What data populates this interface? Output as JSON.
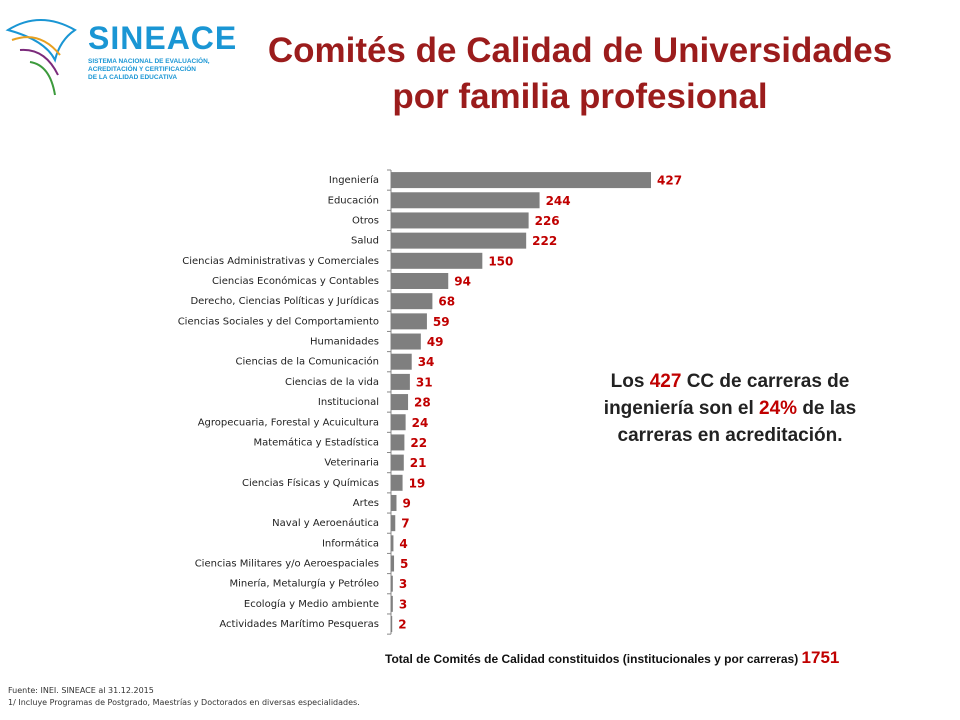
{
  "logo": {
    "name": "SINEACE",
    "subtitle_lines": [
      "SISTEMA NACIONAL DE EVALUACIÓN,",
      "ACREDITACIÓN Y CERTIFICACIÓN",
      "DE LA CALIDAD EDUCATIVA"
    ]
  },
  "chart_data": {
    "type": "bar",
    "orientation": "horizontal",
    "title_lines": [
      "Comités de Calidad de Universidades",
      "por familia profesional"
    ],
    "categories": [
      "Ingeniería",
      "Educación",
      "Otros",
      "Salud",
      "Ciencias Administrativas y Comerciales",
      "Ciencias Económicas y Contables",
      "Derecho, Ciencias Políticas y Jurídicas",
      "Ciencias Sociales y del Comportamiento",
      "Humanidades",
      "Ciencias de la Comunicación",
      "Ciencias de la vida",
      "Institucional",
      "Agropecuaria, Forestal y Acuicultura",
      "Matemática y Estadística",
      "Veterinaria",
      "Ciencias Físicas y Químicas",
      "Artes",
      "Naval y Aeroenáutica",
      "Informática",
      "Ciencias Militares y/o Aeroespaciales",
      "Minería, Metalurgía y Petróleo",
      "Ecología y Medio ambiente",
      "Actividades Marítimo Pesqueras"
    ],
    "values": [
      427,
      244,
      226,
      222,
      150,
      94,
      68,
      59,
      49,
      34,
      31,
      28,
      24,
      22,
      21,
      19,
      9,
      7,
      4,
      5,
      3,
      3,
      2
    ],
    "color": "#7f7f7f",
    "label_color": "#c00000",
    "annotation_parts": [
      "Los ",
      "427",
      " CC de carreras de ingeniería son el ",
      "24%",
      " de las carreras en acreditación."
    ],
    "total_label": "Total de Comités de  Calidad constituidos (institucionales y por carreras)",
    "total_value": "1751"
  },
  "footnotes": [
    "Fuente: INEI. SINEACE al  31.12.2015",
    "1/ Incluye Programas de Postgrado, Maestrías y Doctorados en diversas especialidades."
  ]
}
